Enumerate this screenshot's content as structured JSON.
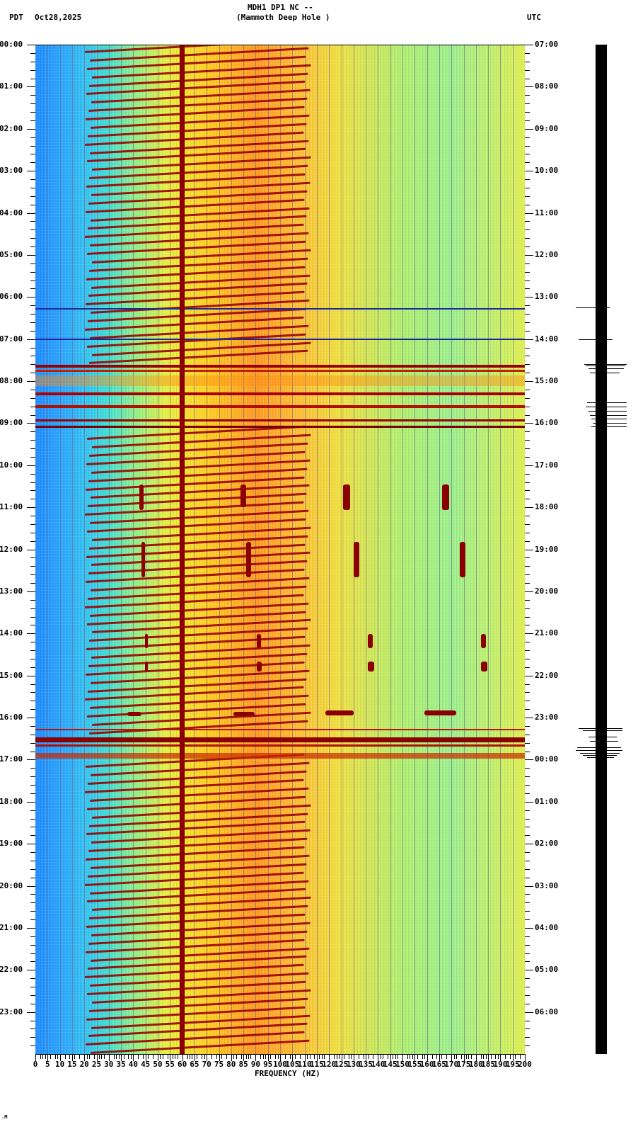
{
  "header": {
    "left_tz": "PDT",
    "date": "Oct28,2025",
    "station_line": "MDH1 DP1 NC --",
    "station_name": "(Mammoth Deep Hole )",
    "right_tz": "UTC"
  },
  "footer_mark": ".M",
  "chart_data": {
    "type": "heatmap",
    "title": "MDH1 DP1 NC -- (Mammoth Deep Hole )",
    "subtitle": "Oct28,2025",
    "xlabel": "FREQUENCY (HZ)",
    "ylabel_left": "PDT",
    "ylabel_right": "UTC",
    "xlim": [
      0,
      200
    ],
    "x_ticks": [
      "0",
      "5",
      "10",
      "15",
      "20",
      "25",
      "30",
      "35",
      "40",
      "45",
      "50",
      "55",
      "60",
      "65",
      "70",
      "75",
      "80",
      "85",
      "90",
      "95",
      "100",
      "105",
      "110",
      "115",
      "120",
      "125",
      "130",
      "135",
      "140",
      "145",
      "150",
      "155",
      "160",
      "165",
      "170",
      "175",
      "180",
      "185",
      "190",
      "195",
      "200"
    ],
    "y_ticks_left": [
      "00:00",
      "01:00",
      "02:00",
      "03:00",
      "04:00",
      "05:00",
      "06:00",
      "07:00",
      "08:00",
      "09:00",
      "10:00",
      "11:00",
      "12:00",
      "13:00",
      "14:00",
      "15:00",
      "16:00",
      "17:00",
      "18:00",
      "19:00",
      "20:00",
      "21:00",
      "22:00",
      "23:00"
    ],
    "y_ticks_right": [
      "07:00",
      "08:00",
      "09:00",
      "10:00",
      "11:00",
      "12:00",
      "13:00",
      "14:00",
      "15:00",
      "16:00",
      "17:00",
      "18:00",
      "19:00",
      "20:00",
      "21:00",
      "22:00",
      "23:00",
      "00:00",
      "01:00",
      "02:00",
      "03:00",
      "04:00",
      "05:00",
      "06:00"
    ],
    "colormap": [
      "#1e8cff",
      "#40e0d0",
      "#8cf08c",
      "#f0f040",
      "#ff9a20",
      "#8a0000"
    ],
    "features": {
      "persistent_line_hz": 60,
      "harmonic_sweeps": "repeating rising tonal sweeps from ~20 Hz to ~130 Hz, about 5 per hour",
      "broadband_events_pdt": [
        "~07:35-09:10",
        "~16:25-16:55"
      ],
      "transient_events_pdt": [
        "~10:30",
        "~11:50-12:40",
        "~14:00-14:45",
        "~16:00"
      ]
    },
    "grid": true
  },
  "seismogram": {
    "label": "trace",
    "events_pdt": [
      "06:15",
      "07:00",
      "07:35",
      "08:35-09:10",
      "16:20-16:55"
    ]
  }
}
